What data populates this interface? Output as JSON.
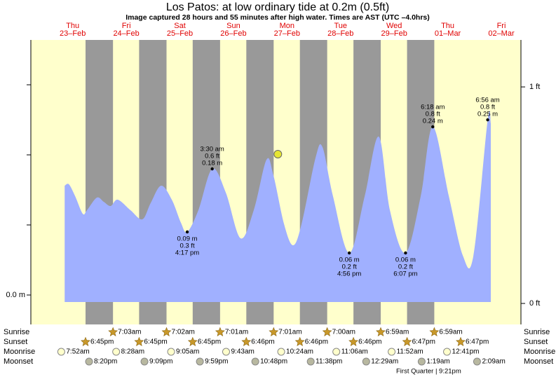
{
  "chart_data": {
    "type": "tide",
    "title": "Los Patos: at low  ordinary tide at 0.2m (0.5ft)",
    "subtitle": "Image captured 28 hours and 55 minutes after high water. Times are AST (UTC –4.0hrs)",
    "xlim": [
      -5.75,
      213.8
    ],
    "ylim": [
      -0.042,
      0.364
    ],
    "yticks": [
      {
        "value": 0,
        "label": "0.0 m"
      }
    ],
    "yminor": [
      0.1,
      0.2,
      0.3
    ],
    "y2lim": [
      -0.097,
      1.217
    ],
    "y2ticks": [
      {
        "value": 0,
        "label": "0 ft"
      },
      {
        "value": 1,
        "label": "1 ft"
      }
    ],
    "color": "#a0b0ff",
    "days": [
      {
        "x": 13,
        "day": "Thu",
        "date": "23–Feb"
      },
      {
        "x": 37,
        "day": "Fri",
        "date": "24–Feb"
      },
      {
        "x": 61,
        "day": "Sat",
        "date": "25–Feb"
      },
      {
        "x": 85,
        "day": "Sun",
        "date": "26–Feb"
      },
      {
        "x": 109,
        "day": "Mon",
        "date": "27–Feb"
      },
      {
        "x": 133,
        "day": "Tue",
        "date": "28–Feb"
      },
      {
        "x": 157,
        "day": "Wed",
        "date": "29–Feb"
      },
      {
        "x": 181,
        "day": "Thu",
        "date": "01–Mar"
      },
      {
        "x": 205,
        "day": "Fri",
        "date": "02–Mar"
      }
    ],
    "x": [
      9.4,
      11.3,
      14.1,
      17.5,
      19.4,
      23.8,
      26.9,
      30.0,
      33.2,
      38.9,
      44.2,
      47.9,
      52.6,
      57.4,
      61.5,
      64.3,
      69.3,
      75.5,
      81.6,
      88.2,
      94.1,
      99.8,
      102.9,
      107.7,
      111.7,
      115.5,
      121.8,
      124.9,
      129.6,
      136.9,
      143.8,
      150.1,
      155.1,
      162.1,
      168.9,
      174.3,
      181.5,
      187.8,
      192.5,
      198.9,
      200.3
    ],
    "values": [
      0.156,
      0.158,
      0.141,
      0.116,
      0.121,
      0.139,
      0.133,
      0.127,
      0.136,
      0.121,
      0.108,
      0.131,
      0.156,
      0.136,
      0.103,
      0.09,
      0.121,
      0.18,
      0.146,
      0.081,
      0.121,
      0.193,
      0.171,
      0.101,
      0.071,
      0.101,
      0.196,
      0.211,
      0.141,
      0.06,
      0.141,
      0.226,
      0.121,
      0.06,
      0.141,
      0.24,
      0.141,
      0.056,
      0.056,
      0.25,
      0.245
    ],
    "annotations": [
      {
        "x": 64.3,
        "value": 0.09,
        "position": "below",
        "lines": [
          "0.09 m",
          "0.3 ft",
          "4:17 pm"
        ]
      },
      {
        "x": 75.5,
        "value": 0.18,
        "position": "above",
        "lines": [
          "3:30 am",
          "0.6 ft",
          "0.18 m"
        ]
      },
      {
        "x": 136.9,
        "value": 0.06,
        "position": "below",
        "lines": [
          "0.06 m",
          "0.2 ft",
          "4:56 pm"
        ]
      },
      {
        "x": 162.1,
        "value": 0.06,
        "position": "below",
        "lines": [
          "0.06 m",
          "0.2 ft",
          "6:07 pm"
        ]
      },
      {
        "x": 174.3,
        "value": 0.24,
        "position": "above",
        "lines": [
          "6:18 am",
          "0.8 ft",
          "0.24 m"
        ]
      },
      {
        "x": 198.9,
        "value": 0.25,
        "position": "above",
        "lines": [
          "6:56 am",
          "0.8 ft",
          "0.25 m"
        ]
      }
    ],
    "current": {
      "x": 104.9,
      "value": 0.201
    },
    "rows": [
      {
        "name": "Sunrise",
        "icon": "star",
        "events": [
          {
            "x": 31.05,
            "label": "7:03am"
          },
          {
            "x": 55.03,
            "label": "7:02am"
          },
          {
            "x": 79.02,
            "label": "7:01am"
          },
          {
            "x": 103.02,
            "label": "7:01am"
          },
          {
            "x": 127.0,
            "label": "7:00am"
          },
          {
            "x": 150.98,
            "label": "6:59am"
          },
          {
            "x": 174.98,
            "label": "6:59am"
          }
        ]
      },
      {
        "name": "Sunset",
        "icon": "star",
        "events": [
          {
            "x": 18.75,
            "label": "6:45pm"
          },
          {
            "x": 42.75,
            "label": "6:45pm"
          },
          {
            "x": 66.75,
            "label": "6:45pm"
          },
          {
            "x": 90.77,
            "label": "6:46pm"
          },
          {
            "x": 114.77,
            "label": "6:46pm"
          },
          {
            "x": 138.77,
            "label": "6:46pm"
          },
          {
            "x": 162.78,
            "label": "6:47pm"
          },
          {
            "x": 186.78,
            "label": "6:47pm"
          }
        ]
      },
      {
        "name": "Moonrise",
        "icon": "moonrise",
        "events": [
          {
            "x": 7.87,
            "label": "7:52am"
          },
          {
            "x": 32.47,
            "label": "8:28am"
          },
          {
            "x": 57.08,
            "label": "9:05am"
          },
          {
            "x": 81.72,
            "label": "9:43am"
          },
          {
            "x": 106.4,
            "label": "10:24am"
          },
          {
            "x": 131.1,
            "label": "11:06am"
          },
          {
            "x": 155.87,
            "label": "11:52am"
          },
          {
            "x": 180.68,
            "label": "12:41pm"
          }
        ]
      },
      {
        "name": "Moonset",
        "icon": "moonset",
        "events": [
          {
            "x": 20.33,
            "label": "8:20pm"
          },
          {
            "x": 45.15,
            "label": "9:09pm"
          },
          {
            "x": 69.98,
            "label": "9:59pm"
          },
          {
            "x": 94.8,
            "label": "10:48pm"
          },
          {
            "x": 119.63,
            "label": "11:38pm"
          },
          {
            "x": 144.48,
            "label": "12:29am"
          },
          {
            "x": 169.32,
            "label": "1:19am"
          },
          {
            "x": 194.15,
            "label": "2:09am"
          }
        ]
      }
    ],
    "moon_phase": "First Quarter | 9:21pm"
  }
}
